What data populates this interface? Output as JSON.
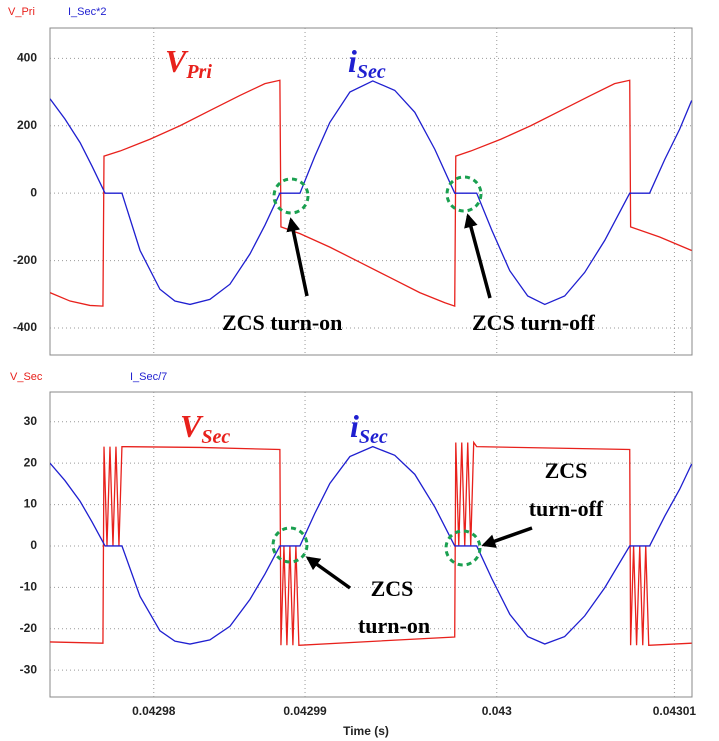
{
  "chart_data": [
    {
      "type": "line",
      "ylim": [
        -480,
        490
      ],
      "yticks": [
        -400,
        -200,
        0,
        200,
        400
      ],
      "xlim": [
        0.0429746,
        0.0430111
      ],
      "xticks": [
        0.0429805,
        0.0429891,
        0.043,
        0.0430101
      ],
      "grid": true,
      "series": [
        {
          "name": "V_Pri",
          "color": "#e8211c",
          "x": [
            0.0429746,
            0.04297574,
            0.04297687,
            0.04297761,
            0.04297767,
            0.04297858,
            0.04298028,
            0.04298199,
            0.04298369,
            0.0429854,
            0.04298682,
            0.04298767,
            0.04298773,
            0.04298881,
            0.04299051,
            0.04299222,
            0.04299392,
            0.04299562,
            0.04299705,
            0.04299761,
            0.04299767,
            0.04299852,
            0.04300023,
            0.04300193,
            0.04300364,
            0.04300534,
            0.0430067,
            0.04300756,
            0.04300761,
            0.04300926,
            0.04301108
          ],
          "values": [
            -295,
            -320,
            -333,
            -335,
            110,
            125,
            160,
            200,
            245,
            290,
            325,
            335,
            -100,
            -120,
            -160,
            -205,
            -250,
            -295,
            -325,
            -335,
            110,
            125,
            160,
            200,
            245,
            290,
            325,
            335,
            -100,
            -130,
            -170
          ]
        },
        {
          "name": "I_Sec*2",
          "color": "#1f1fd0",
          "x": [
            0.0429746,
            0.04297545,
            0.04297631,
            0.04297699,
            0.04297773,
            0.04297869,
            0.04297972,
            0.04298085,
            0.0429817,
            0.04298256,
            0.04298369,
            0.04298483,
            0.04298597,
            0.04298682,
            0.04298767,
            0.04298881,
            0.04298966,
            0.04299051,
            0.04299165,
            0.04299295,
            0.0429942,
            0.04299534,
            0.04299648,
            0.04299761,
            0.04299886,
            0.04299972,
            0.04300074,
            0.04300176,
            0.04300273,
            0.04300386,
            0.043005,
            0.04300614,
            0.04300756,
            0.04300869,
            0.04300955,
            0.0430104,
            0.04301108
          ],
          "values": [
            280,
            220,
            150,
            80,
            0,
            0,
            -170,
            -285,
            -320,
            -330,
            -315,
            -270,
            -180,
            -95,
            0,
            0,
            110,
            210,
            300,
            333,
            305,
            240,
            130,
            0,
            0,
            -110,
            -230,
            -305,
            -330,
            -305,
            -235,
            -140,
            0,
            0,
            100,
            190,
            275
          ]
        }
      ],
      "annotations": [
        {
          "text": "V",
          "sub": "Pri"
        },
        {
          "text": "i",
          "sub": "Sec"
        },
        {
          "text": "ZCS turn-on"
        },
        {
          "text": "ZCS turn-off"
        }
      ]
    },
    {
      "type": "line",
      "ylim": [
        -36.5,
        37.2
      ],
      "yticks": [
        -30,
        -20,
        -10,
        0,
        10,
        20,
        30
      ],
      "xlim": [
        0.0429746,
        0.0430111
      ],
      "xticks": [
        {
          "value": 0.0429805,
          "label": "0.04298"
        },
        {
          "value": 0.0429891,
          "label": "0.04299"
        },
        {
          "value": 0.043,
          "label": "0.043"
        },
        {
          "value": 0.0430101,
          "label": "0.04301"
        }
      ],
      "x_label": "Time (s)",
      "grid": true,
      "series": [
        {
          "name": "V_Sec",
          "color": "#e8211c",
          "x": [
            0.0429746,
            0.04297761,
            0.04297767,
            0.04297784,
            0.04297801,
            0.04297818,
            0.04297835,
            0.04297852,
            0.04297869,
            0.04298312,
            0.04298767,
            0.04298773,
            0.0429879,
            0.04298807,
            0.04298824,
            0.04298841,
            0.04298858,
            0.04298875,
            0.04299761,
            0.04299767,
            0.04299784,
            0.04299801,
            0.04299818,
            0.04299835,
            0.04299852,
            0.04299869,
            0.04299886,
            0.04300756,
            0.04300761,
            0.04300778,
            0.04300795,
            0.04300813,
            0.0430083,
            0.04300847,
            0.04300864,
            0.04301108
          ],
          "values": [
            -23.2,
            -23.5,
            24,
            0,
            24,
            0,
            24,
            0,
            24,
            23.8,
            23.3,
            -24,
            0,
            -24,
            0,
            -24,
            0,
            -24,
            -22,
            25,
            0,
            25,
            0,
            25,
            0,
            25,
            24,
            23.3,
            -24,
            0,
            -24,
            0,
            -24,
            0,
            -24,
            -23.5
          ]
        },
        {
          "name": "I_Sec/7",
          "color": "#1f1fd0",
          "x": [
            0.0429746,
            0.04297545,
            0.04297631,
            0.04297699,
            0.04297773,
            0.04297869,
            0.04297972,
            0.04298085,
            0.0429817,
            0.04298256,
            0.04298369,
            0.04298483,
            0.04298597,
            0.04298682,
            0.04298767,
            0.04298881,
            0.04298966,
            0.04299051,
            0.04299165,
            0.04299295,
            0.0429942,
            0.04299534,
            0.04299648,
            0.04299761,
            0.04299886,
            0.04299972,
            0.04300074,
            0.04300176,
            0.04300273,
            0.04300386,
            0.043005,
            0.04300614,
            0.04300756,
            0.04300869,
            0.04300955,
            0.0430104,
            0.04301108
          ],
          "values": [
            20,
            15.8,
            10.8,
            5.8,
            0,
            0,
            -12.2,
            -20.5,
            -23,
            -23.7,
            -22.7,
            -19.4,
            -12.9,
            -6.8,
            0,
            0,
            7.9,
            15.1,
            21.6,
            24,
            21.9,
            17.3,
            9.4,
            0,
            0,
            -7.9,
            -16.5,
            -21.9,
            -23.7,
            -21.9,
            -16.9,
            -10.1,
            0,
            0,
            7.2,
            13.7,
            19.8
          ]
        }
      ],
      "annotations": [
        {
          "text": "V",
          "sub": "Sec"
        },
        {
          "text": "i",
          "sub": "Sec"
        },
        {
          "lines": [
            "ZCS",
            "turn-on"
          ]
        },
        {
          "lines": [
            "ZCS",
            "turn-off"
          ]
        }
      ]
    }
  ]
}
